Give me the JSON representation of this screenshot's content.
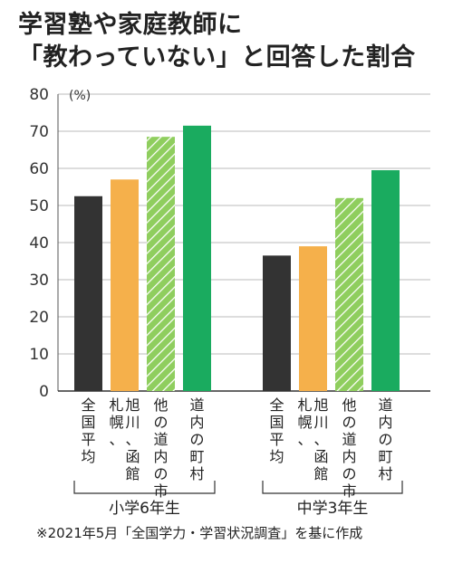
{
  "title": {
    "line1": "学習塾や家庭教師に",
    "line2": "「教わっていない」と回答した割合"
  },
  "note": "※2021年5月「全国学力・学習状況調査」を基に作成",
  "chart_data": {
    "type": "bar",
    "unit_label": "(%)",
    "ylim": [
      0,
      80
    ],
    "yticks": [
      0,
      10,
      20,
      30,
      40,
      50,
      60,
      70,
      80
    ],
    "groups": [
      "小学6年生",
      "中学3年生"
    ],
    "categories": [
      "全国平均",
      "札幌、旭川、函館",
      "他の道内の市",
      "道内の町村"
    ],
    "category_label_columns": [
      [
        "全国平均"
      ],
      [
        "札幌、",
        "旭川、函館"
      ],
      [
        "他の道内の市"
      ],
      [
        "道内の町村"
      ]
    ],
    "series": [
      {
        "group": "小学6年生",
        "values": [
          52.5,
          57,
          68.5,
          71.5
        ]
      },
      {
        "group": "中学3年生",
        "values": [
          36.5,
          39,
          52,
          59.5
        ]
      }
    ],
    "colors": [
      "#333333",
      "#f5b04b",
      "#8fce5e",
      "#1aab5f"
    ],
    "hatched": [
      false,
      false,
      true,
      false
    ]
  }
}
